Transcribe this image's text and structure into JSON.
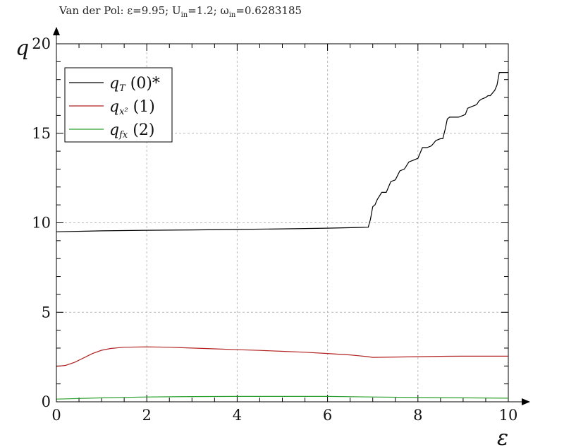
{
  "title": {
    "prefix": "Van der Pol: ε=9.95; U",
    "u_sub": "in",
    "mid": "=1.2; ω",
    "w_sub": "in",
    "suffix": "=0.6283185"
  },
  "chart_data": {
    "type": "line",
    "xlabel": "ε",
    "ylabel": "q",
    "xlim": [
      0,
      10
    ],
    "ylim": [
      0,
      20
    ],
    "xticks": [
      0,
      2,
      4,
      6,
      8,
      10
    ],
    "yticks": [
      0,
      5,
      10,
      15,
      20
    ],
    "grid": true,
    "legend_position": "top-left",
    "series": [
      {
        "name": "qT (0)*",
        "legend_symbol": "q",
        "legend_sub": "T",
        "legend_tag": "(0)*",
        "color": "#000000",
        "x": [
          0,
          1,
          2,
          3,
          4,
          5,
          6,
          6.9,
          6.95,
          7.0,
          7.05,
          7.1,
          7.2,
          7.3,
          7.4,
          7.5,
          7.6,
          7.7,
          7.8,
          7.9,
          8.0,
          8.1,
          8.2,
          8.3,
          8.4,
          8.5,
          8.55,
          8.6,
          8.65,
          8.7,
          8.8,
          8.9,
          9.0,
          9.05,
          9.1,
          9.2,
          9.3,
          9.35,
          9.4,
          9.5,
          9.55,
          9.6,
          9.7,
          9.75,
          9.8,
          9.9,
          10.0
        ],
        "values": [
          9.5,
          9.55,
          9.58,
          9.6,
          9.63,
          9.66,
          9.7,
          9.75,
          10.2,
          10.9,
          11.0,
          11.3,
          11.7,
          11.7,
          12.3,
          12.4,
          12.9,
          13.0,
          13.4,
          13.5,
          13.6,
          14.2,
          14.2,
          14.3,
          14.6,
          14.7,
          14.7,
          15.2,
          15.8,
          15.9,
          15.9,
          15.9,
          16.0,
          16.05,
          16.4,
          16.5,
          16.6,
          16.8,
          16.9,
          17.0,
          17.1,
          17.1,
          17.4,
          17.7,
          18.4,
          18.4,
          18.4
        ]
      },
      {
        "name": "qx² (1)",
        "legend_symbol": "q",
        "legend_sub": "x²",
        "legend_tag": "(1)",
        "color": "#b22222",
        "x": [
          0,
          0.2,
          0.4,
          0.6,
          0.8,
          1.0,
          1.2,
          1.5,
          2.0,
          2.5,
          3.0,
          3.5,
          4.0,
          4.5,
          5.0,
          5.5,
          6.0,
          6.5,
          6.9,
          7.0,
          7.5,
          8.0,
          8.5,
          9.0,
          9.5,
          10.0
        ],
        "values": [
          1.98,
          2.03,
          2.2,
          2.45,
          2.7,
          2.88,
          2.98,
          3.05,
          3.07,
          3.05,
          3.0,
          2.96,
          2.91,
          2.87,
          2.82,
          2.77,
          2.7,
          2.62,
          2.52,
          2.48,
          2.5,
          2.52,
          2.54,
          2.55,
          2.55,
          2.55
        ]
      },
      {
        "name": "qfx (2)",
        "legend_symbol": "q",
        "legend_sub": "fx",
        "legend_tag": "(2)",
        "color": "#2ca02c",
        "x": [
          0,
          1,
          2,
          3,
          4,
          5,
          6,
          7,
          8,
          9,
          10
        ],
        "values": [
          0.15,
          0.22,
          0.27,
          0.29,
          0.3,
          0.3,
          0.3,
          0.27,
          0.24,
          0.22,
          0.2
        ]
      }
    ]
  }
}
